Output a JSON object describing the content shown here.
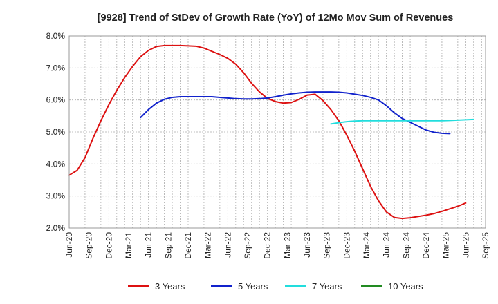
{
  "chart_data": {
    "type": "line",
    "title": "[9928]  Trend of StDev of Growth Rate (YoY) of 12Mo Mov Sum of Revenues",
    "xlabel": "",
    "ylabel": "",
    "ylim": [
      2.0,
      8.0
    ],
    "yticks": [
      "2.0%",
      "3.0%",
      "4.0%",
      "5.0%",
      "6.0%",
      "7.0%",
      "8.0%"
    ],
    "ytick_values": [
      2.0,
      3.0,
      4.0,
      5.0,
      6.0,
      7.0,
      8.0
    ],
    "xticks": [
      "Jun-20",
      "Sep-20",
      "Dec-20",
      "Mar-21",
      "Jun-21",
      "Sep-21",
      "Dec-21",
      "Mar-22",
      "Jun-22",
      "Sep-22",
      "Dec-22",
      "Mar-23",
      "Jun-23",
      "Sep-23",
      "Dec-23",
      "Mar-24",
      "Jun-24",
      "Sep-24",
      "Dec-24",
      "Mar-25",
      "Jun-25",
      "Sep-25"
    ],
    "grid": true,
    "legend_position": "bottom",
    "series": [
      {
        "name": "3 Years",
        "color": "#dd1111",
        "start_index": 0,
        "values": [
          3.65,
          3.8,
          4.2,
          4.8,
          5.35,
          5.85,
          6.3,
          6.7,
          7.05,
          7.35,
          7.55,
          7.67,
          7.7,
          7.7,
          7.7,
          7.69,
          7.68,
          7.62,
          7.52,
          7.42,
          7.3,
          7.12,
          6.85,
          6.52,
          6.25,
          6.05,
          5.95,
          5.9,
          5.92,
          6.02,
          6.15,
          6.18,
          5.98,
          5.7,
          5.35,
          4.9,
          4.4,
          3.85,
          3.3,
          2.85,
          2.5,
          2.33,
          2.3,
          2.32,
          2.36,
          2.4,
          2.45,
          2.52,
          2.6,
          2.68,
          2.78
        ]
      },
      {
        "name": "5 Years",
        "color": "#1122cc",
        "start_index": 9,
        "values": [
          5.45,
          5.7,
          5.9,
          6.02,
          6.08,
          6.1,
          6.1,
          6.1,
          6.1,
          6.1,
          6.08,
          6.06,
          6.04,
          6.03,
          6.03,
          6.04,
          6.06,
          6.1,
          6.15,
          6.19,
          6.22,
          6.24,
          6.25,
          6.25,
          6.25,
          6.24,
          6.22,
          6.18,
          6.14,
          6.08,
          6.0,
          5.82,
          5.6,
          5.42,
          5.3,
          5.18,
          5.06,
          4.99,
          4.96,
          4.95
        ]
      },
      {
        "name": "7 Years",
        "color": "#22dddd",
        "start_index": 33,
        "values": [
          5.25,
          5.29,
          5.32,
          5.34,
          5.35,
          5.35,
          5.35,
          5.35,
          5.35,
          5.35,
          5.35,
          5.35,
          5.35,
          5.35,
          5.35,
          5.36,
          5.37,
          5.38,
          5.39
        ]
      },
      {
        "name": "10 Years",
        "color": "#228b22",
        "start_index": 0,
        "values": []
      }
    ]
  }
}
